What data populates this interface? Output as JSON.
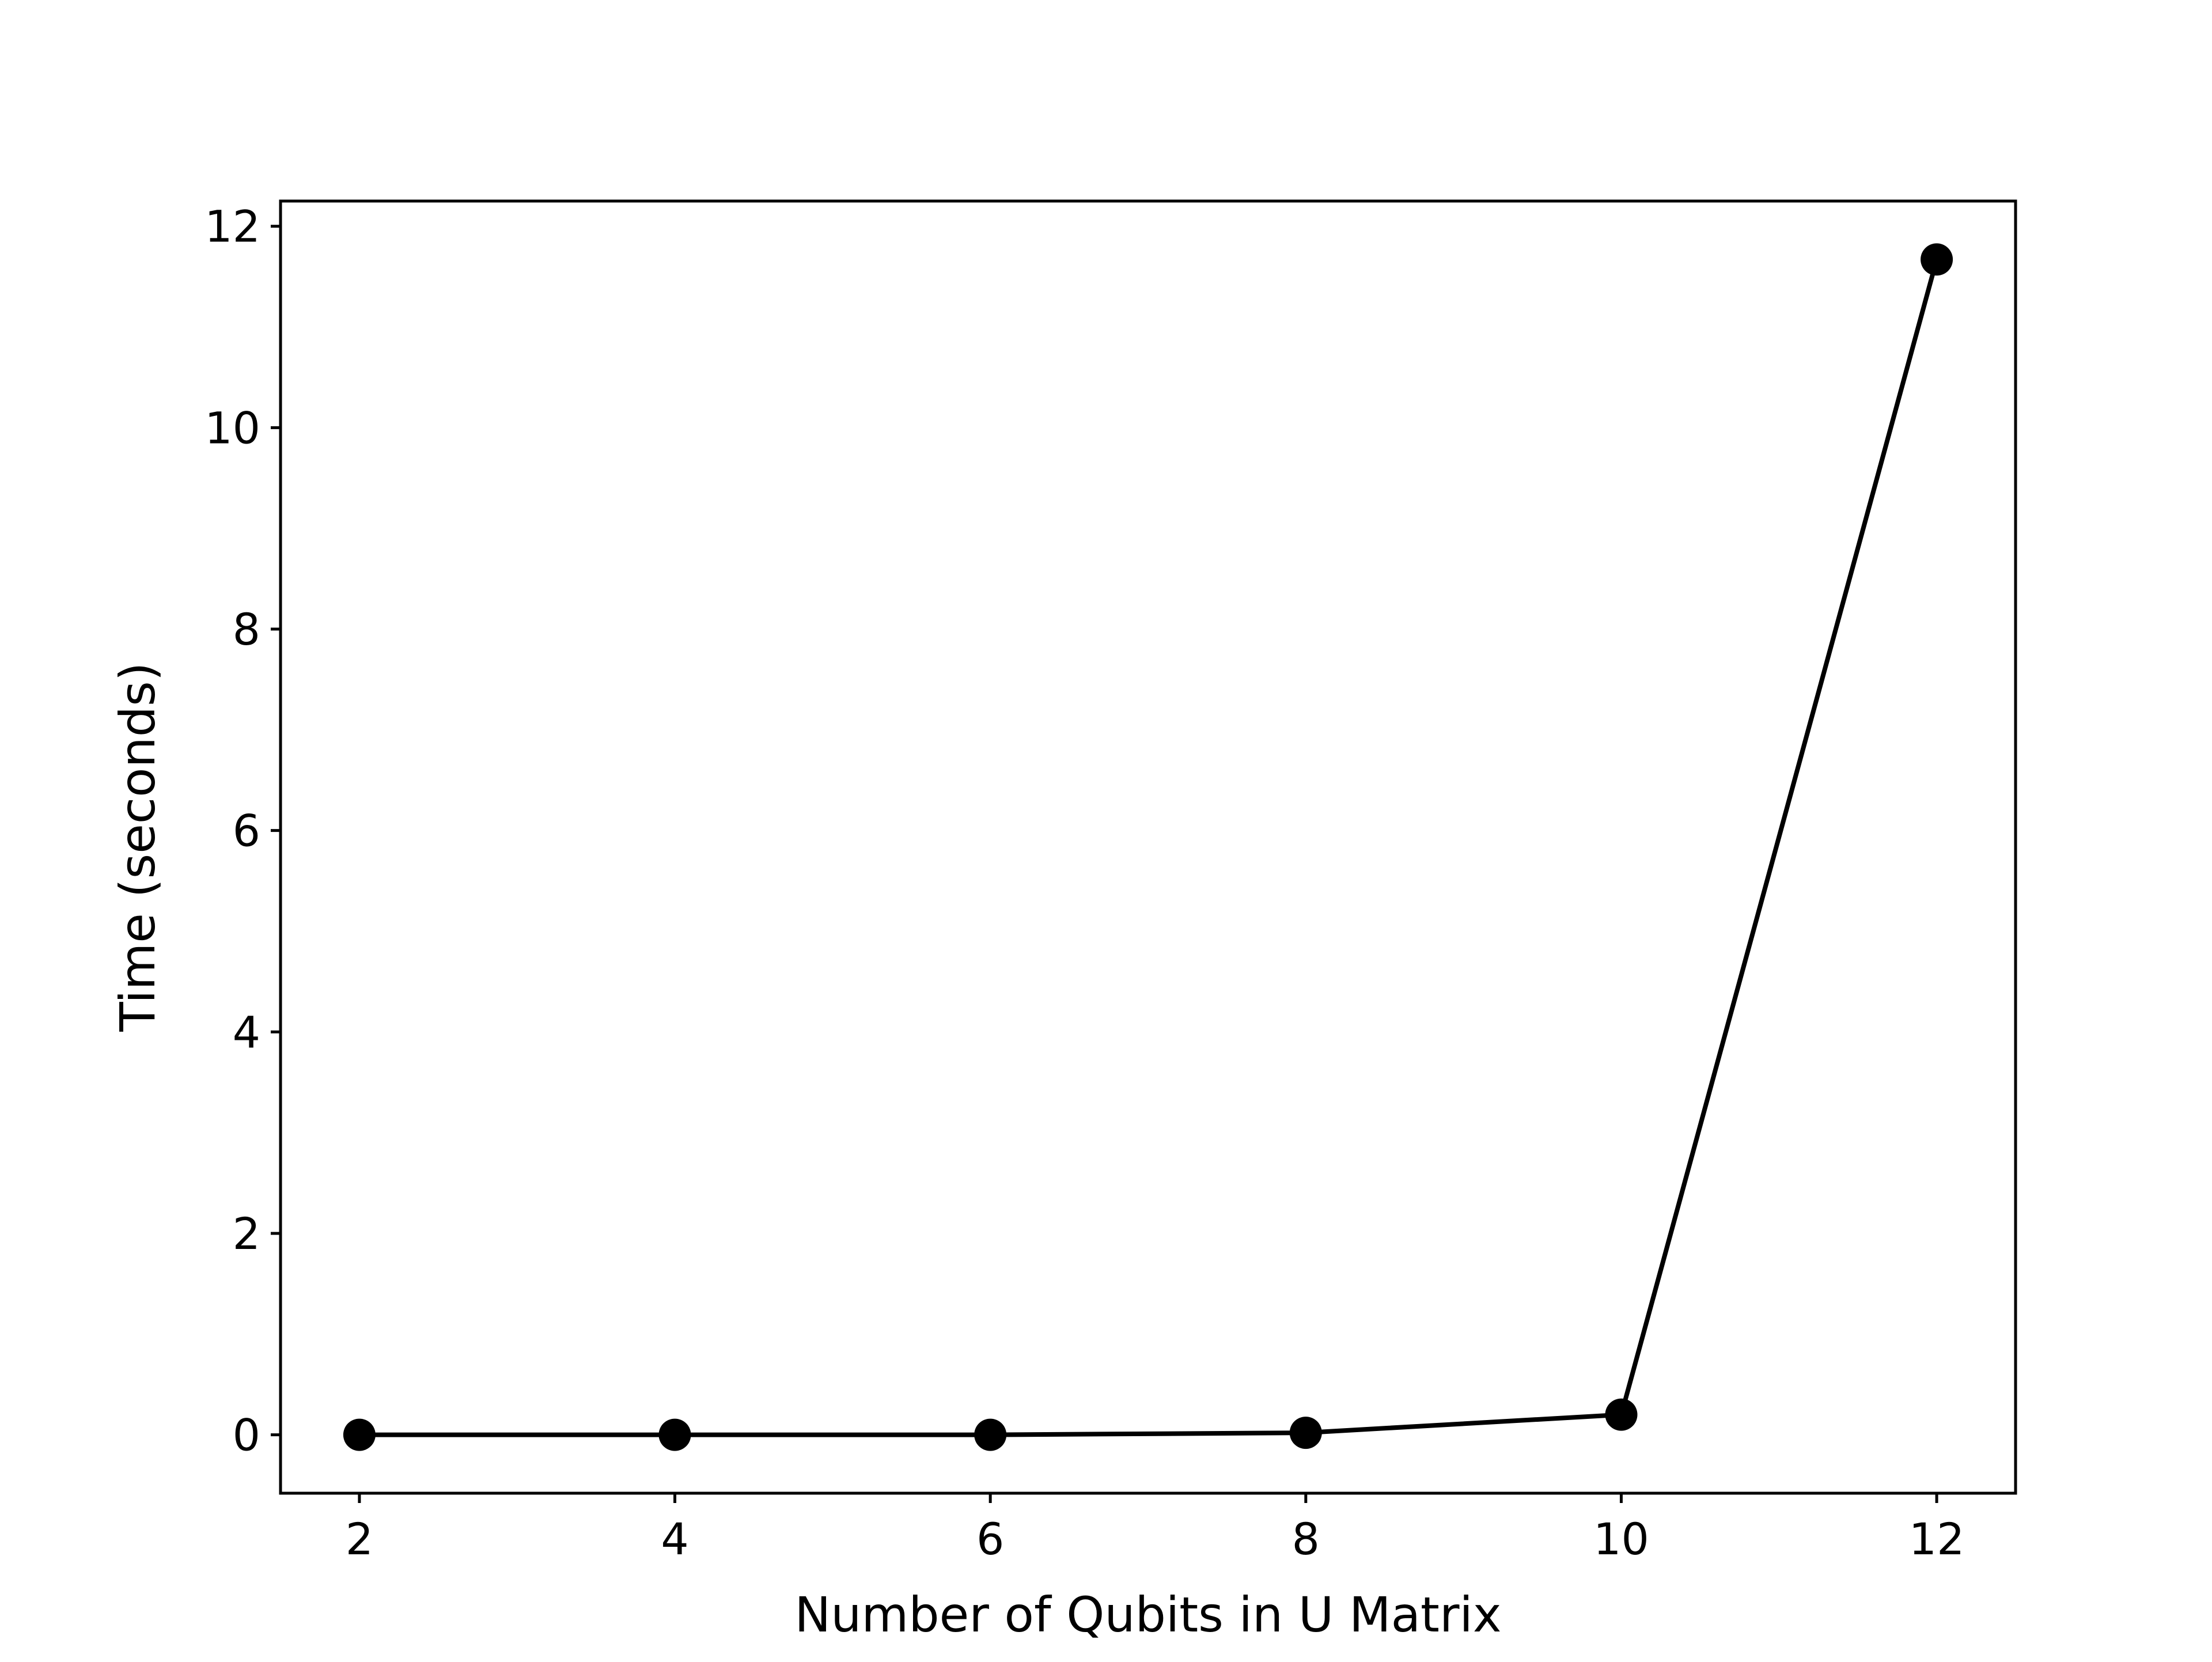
{
  "chart_data": {
    "type": "line",
    "title": "",
    "xlabel": "Number of Qubits in U Matrix",
    "ylabel": "Time (seconds)",
    "x": [
      2,
      4,
      6,
      8,
      10,
      12
    ],
    "series": [
      {
        "values": [
          0.0,
          0.0,
          0.0,
          0.02,
          0.2,
          11.67
        ]
      }
    ],
    "xlim": [
      1.5,
      12.5
    ],
    "ylim": [
      -0.58,
      12.25
    ],
    "xticks": [
      2,
      4,
      6,
      8,
      10,
      12
    ],
    "yticks": [
      0,
      2,
      4,
      6,
      8,
      10,
      12
    ],
    "xtick_labels": [
      "2",
      "4",
      "6",
      "8",
      "10",
      "12"
    ],
    "ytick_labels": [
      "0",
      "2",
      "4",
      "6",
      "8",
      "10",
      "12"
    ],
    "grid": false,
    "legend": "none",
    "colors": {
      "line": "#000000",
      "marker": "#000000",
      "axes": "#000000",
      "background": "#ffffff"
    }
  }
}
